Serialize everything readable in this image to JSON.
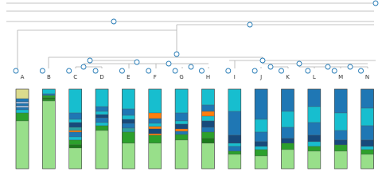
{
  "chart_data": {
    "type": "stacked-column-tree",
    "columns": [
      {
        "label": "A",
        "segments": [
          {
            "color": "#dbdb8d",
            "value": 12
          },
          {
            "color": "#1f77b4",
            "value": 4
          },
          {
            "color": "#aec7e8",
            "value": 2
          },
          {
            "color": "#1f77b4",
            "value": 3
          },
          {
            "color": "#aec7e8",
            "value": 2
          },
          {
            "color": "#1f77b4",
            "value": 3
          },
          {
            "color": "#17becf",
            "value": 4
          },
          {
            "color": "#2ca02c",
            "value": 10
          },
          {
            "color": "#98df8a",
            "value": 60
          }
        ]
      },
      {
        "label": "B",
        "segments": [
          {
            "color": "#17becf",
            "value": 6
          },
          {
            "color": "#1f77b4",
            "value": 2
          },
          {
            "color": "#2ca02c",
            "value": 3
          },
          {
            "color": "#1a7a1a",
            "value": 2
          },
          {
            "color": "#2ca02c",
            "value": 2
          },
          {
            "color": "#98df8a",
            "value": 85
          }
        ]
      },
      {
        "label": "C",
        "segments": [
          {
            "color": "#17becf",
            "value": 30
          },
          {
            "color": "#1f77b4",
            "value": 8
          },
          {
            "color": "#17becf",
            "value": 4
          },
          {
            "color": "#174a7c",
            "value": 6
          },
          {
            "color": "#2ca0a0",
            "value": 4
          },
          {
            "color": "#ff7f0e",
            "value": 2
          },
          {
            "color": "#1f77b4",
            "value": 6
          },
          {
            "color": "#17becf",
            "value": 4
          },
          {
            "color": "#2ca02c",
            "value": 6
          },
          {
            "color": "#1a7a1a",
            "value": 4
          },
          {
            "color": "#98df8a",
            "value": 26
          }
        ]
      },
      {
        "label": "D",
        "segments": [
          {
            "color": "#17becf",
            "value": 22
          },
          {
            "color": "#1f77b4",
            "value": 6
          },
          {
            "color": "#17becf",
            "value": 4
          },
          {
            "color": "#174a7c",
            "value": 4
          },
          {
            "color": "#1f77b4",
            "value": 6
          },
          {
            "color": "#17becf",
            "value": 4
          },
          {
            "color": "#2ca02c",
            "value": 6
          },
          {
            "color": "#98df8a",
            "value": 48
          }
        ]
      },
      {
        "label": "E",
        "segments": [
          {
            "color": "#17becf",
            "value": 25
          },
          {
            "color": "#1f77b4",
            "value": 8
          },
          {
            "color": "#17becf",
            "value": 5
          },
          {
            "color": "#174a7c",
            "value": 5
          },
          {
            "color": "#1f77b4",
            "value": 6
          },
          {
            "color": "#2ca0a0",
            "value": 5
          },
          {
            "color": "#2ca02c",
            "value": 14
          },
          {
            "color": "#98df8a",
            "value": 32
          }
        ]
      },
      {
        "label": "F",
        "segments": [
          {
            "color": "#17becf",
            "value": 30
          },
          {
            "color": "#ff7f0e",
            "value": 7
          },
          {
            "color": "#1f77b4",
            "value": 6
          },
          {
            "color": "#17becf",
            "value": 4
          },
          {
            "color": "#ff7f0e",
            "value": 3
          },
          {
            "color": "#174a7c",
            "value": 6
          },
          {
            "color": "#ff7f0e",
            "value": 2
          },
          {
            "color": "#2ca02c",
            "value": 10
          },
          {
            "color": "#98df8a",
            "value": 32
          }
        ]
      },
      {
        "label": "G",
        "segments": [
          {
            "color": "#17becf",
            "value": 30
          },
          {
            "color": "#1f77b4",
            "value": 10
          },
          {
            "color": "#17becf",
            "value": 4
          },
          {
            "color": "#174a7c",
            "value": 6
          },
          {
            "color": "#ff7f0e",
            "value": 3
          },
          {
            "color": "#1f77b4",
            "value": 4
          },
          {
            "color": "#2ca02c",
            "value": 7
          },
          {
            "color": "#98df8a",
            "value": 36
          }
        ]
      },
      {
        "label": "H",
        "segments": [
          {
            "color": "#17becf",
            "value": 20
          },
          {
            "color": "#1f77b4",
            "value": 8
          },
          {
            "color": "#ff7f0e",
            "value": 6
          },
          {
            "color": "#17becf",
            "value": 6
          },
          {
            "color": "#174a7c",
            "value": 8
          },
          {
            "color": "#1f77b4",
            "value": 6
          },
          {
            "color": "#2ca02c",
            "value": 8
          },
          {
            "color": "#1a7a1a",
            "value": 6
          },
          {
            "color": "#98df8a",
            "value": 32
          }
        ]
      },
      {
        "label": "I",
        "segments": [
          {
            "color": "#17becf",
            "value": 28
          },
          {
            "color": "#1f77b4",
            "value": 30
          },
          {
            "color": "#174a7c",
            "value": 10
          },
          {
            "color": "#17becf",
            "value": 4
          },
          {
            "color": "#1f77b4",
            "value": 6
          },
          {
            "color": "#2ca02c",
            "value": 4
          },
          {
            "color": "#98df8a",
            "value": 18
          }
        ]
      },
      {
        "label": "J",
        "segments": [
          {
            "color": "#1f77b4",
            "value": 38
          },
          {
            "color": "#17becf",
            "value": 16
          },
          {
            "color": "#1f77b4",
            "value": 12
          },
          {
            "color": "#174a7c",
            "value": 6
          },
          {
            "color": "#17becf",
            "value": 4
          },
          {
            "color": "#2ca02c",
            "value": 8
          },
          {
            "color": "#98df8a",
            "value": 16
          }
        ]
      },
      {
        "label": "K",
        "segments": [
          {
            "color": "#1f77b4",
            "value": 28
          },
          {
            "color": "#17becf",
            "value": 20
          },
          {
            "color": "#1f77b4",
            "value": 14
          },
          {
            "color": "#174a7c",
            "value": 6
          },
          {
            "color": "#2ca02c",
            "value": 8
          },
          {
            "color": "#98df8a",
            "value": 24
          }
        ]
      },
      {
        "label": "L",
        "segments": [
          {
            "color": "#1f77b4",
            "value": 22
          },
          {
            "color": "#17becf",
            "value": 20
          },
          {
            "color": "#1f77b4",
            "value": 16
          },
          {
            "color": "#174a7c",
            "value": 8
          },
          {
            "color": "#17becf",
            "value": 6
          },
          {
            "color": "#2ca02c",
            "value": 6
          },
          {
            "color": "#98df8a",
            "value": 22
          }
        ]
      },
      {
        "label": "M",
        "segments": [
          {
            "color": "#1f77b4",
            "value": 30
          },
          {
            "color": "#17becf",
            "value": 22
          },
          {
            "color": "#1f77b4",
            "value": 12
          },
          {
            "color": "#174a7c",
            "value": 6
          },
          {
            "color": "#2ca02c",
            "value": 8
          },
          {
            "color": "#98df8a",
            "value": 22
          }
        ]
      },
      {
        "label": "N",
        "segments": [
          {
            "color": "#1f77b4",
            "value": 24
          },
          {
            "color": "#17becf",
            "value": 22
          },
          {
            "color": "#1f77b4",
            "value": 18
          },
          {
            "color": "#174a7c",
            "value": 8
          },
          {
            "color": "#17becf",
            "value": 4
          },
          {
            "color": "#2ca02c",
            "value": 6
          },
          {
            "color": "#98df8a",
            "value": 18
          }
        ]
      }
    ]
  }
}
